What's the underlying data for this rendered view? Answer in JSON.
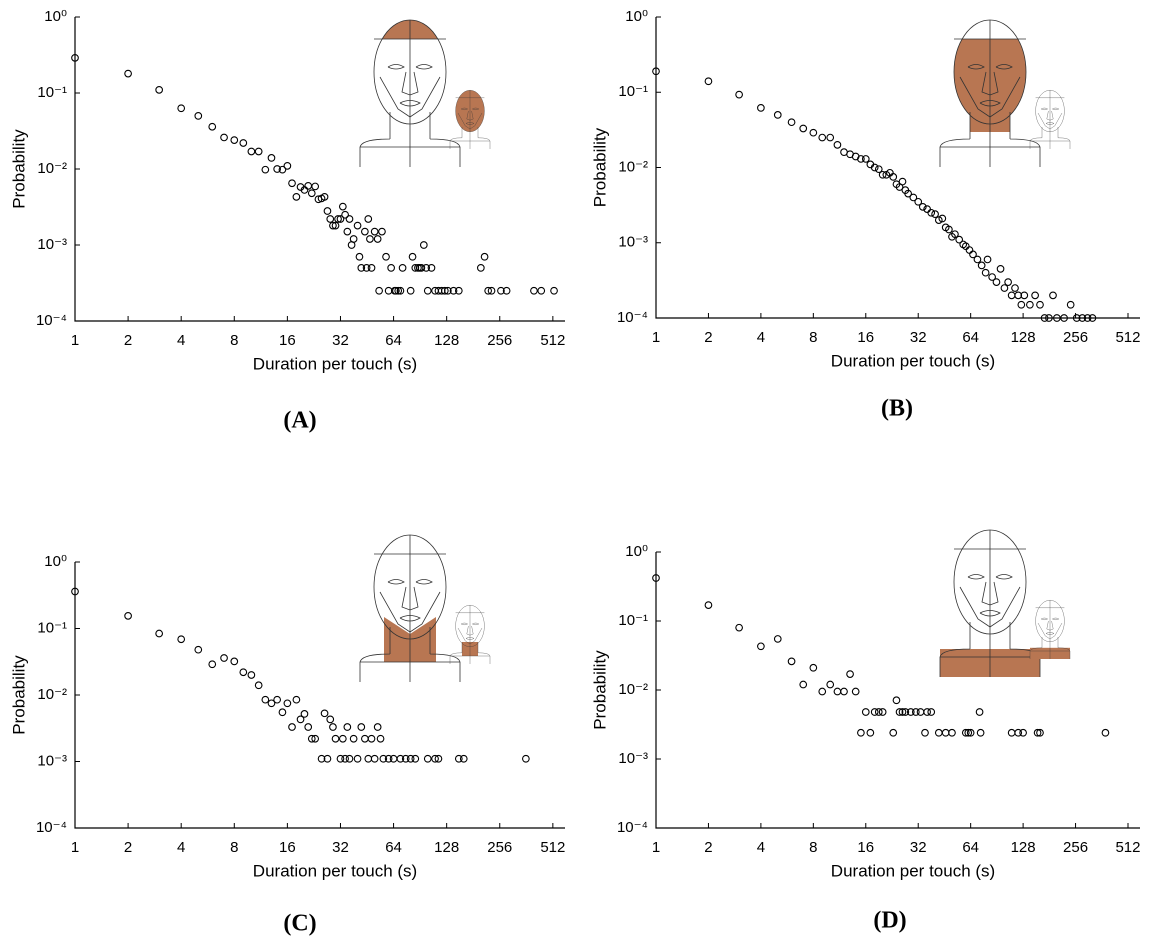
{
  "chart_data": [
    {
      "type": "scatter",
      "panel_label": "(A)",
      "x_label": "Duration per touch (s)",
      "y_label": "Probability",
      "color": "#000000",
      "xscale": "log",
      "yscale": "log",
      "xlim": [
        1,
        600
      ],
      "ylim": [
        0.0001,
        1
      ],
      "xticks": [
        1,
        2,
        4,
        8,
        16,
        32,
        64,
        128,
        256,
        512
      ],
      "yticks": [
        {
          "value": 1,
          "label": "10⁰"
        },
        {
          "value": 0.1,
          "label": "10⁻¹"
        },
        {
          "value": 0.01,
          "label": "10⁻²"
        },
        {
          "value": 0.001,
          "label": "10⁻³"
        },
        {
          "value": 0.0001,
          "label": "10⁻⁴"
        }
      ],
      "x": [
        1,
        2,
        3,
        4,
        5,
        6,
        7,
        8,
        9,
        10,
        11,
        12,
        13,
        14,
        15,
        16,
        17,
        18,
        19,
        20,
        21,
        22,
        23,
        24,
        25,
        26,
        27,
        28,
        29,
        30,
        31,
        32,
        33,
        34,
        35,
        36,
        37,
        38,
        40,
        41,
        42,
        44,
        45,
        46,
        47,
        48,
        50,
        52,
        53,
        55,
        58,
        60,
        62,
        65,
        66,
        68,
        70,
        72,
        80,
        82,
        85,
        88,
        90,
        92,
        95,
        98,
        100,
        105,
        110,
        115,
        120,
        125,
        130,
        140,
        150,
        200,
        210,
        220,
        230,
        260,
        280,
        400,
        440,
        520
      ],
      "values": [
        0.29,
        0.18,
        0.11,
        0.063,
        0.05,
        0.036,
        0.026,
        0.024,
        0.022,
        0.017,
        0.017,
        0.0098,
        0.014,
        0.01,
        0.0098,
        0.011,
        0.0065,
        0.0043,
        0.0058,
        0.0053,
        0.006,
        0.0048,
        0.0059,
        0.004,
        0.0041,
        0.0043,
        0.0028,
        0.0022,
        0.0018,
        0.0018,
        0.0022,
        0.0022,
        0.0032,
        0.0025,
        0.0015,
        0.0022,
        0.001,
        0.0012,
        0.0018,
        0.0007,
        0.0005,
        0.0015,
        0.0005,
        0.0022,
        0.0012,
        0.0005,
        0.0015,
        0.0012,
        0.00025,
        0.0015,
        0.0007,
        0.00025,
        0.0005,
        0.00025,
        0.00025,
        0.00025,
        0.00025,
        0.0005,
        0.00025,
        0.0007,
        0.0005,
        0.0005,
        0.0005,
        0.0005,
        0.001,
        0.0005,
        0.00025,
        0.0005,
        0.00025,
        0.00025,
        0.00025,
        0.00025,
        0.00025,
        0.00025,
        0.00025,
        0.0005,
        0.0007,
        0.00025,
        0.00025,
        0.00025,
        0.00025,
        0.00025,
        0.00025,
        0.00025
      ]
    },
    {
      "type": "scatter",
      "panel_label": "(B)",
      "x_label": "Duration per touch (s)",
      "y_label": "Probability",
      "color": "#000000",
      "xscale": "log",
      "yscale": "log",
      "xlim": [
        1,
        600
      ],
      "ylim": [
        0.0001,
        1
      ],
      "xticks": [
        1,
        2,
        4,
        8,
        16,
        32,
        64,
        128,
        256,
        512
      ],
      "yticks": [
        {
          "value": 1,
          "label": "10⁰"
        },
        {
          "value": 0.1,
          "label": "10⁻¹"
        },
        {
          "value": 0.01,
          "label": "10⁻²"
        },
        {
          "value": 0.001,
          "label": "10⁻³"
        },
        {
          "value": 0.0001,
          "label": "10⁻⁴"
        }
      ],
      "x": [
        1,
        2,
        3,
        4,
        5,
        6,
        7,
        8,
        9,
        10,
        11,
        12,
        13,
        14,
        15,
        16,
        17,
        18,
        19,
        20,
        21,
        22,
        23,
        24,
        25,
        26,
        27,
        28,
        30,
        32,
        34,
        36,
        38,
        40,
        42,
        44,
        46,
        48,
        50,
        52,
        55,
        58,
        60,
        63,
        66,
        70,
        74,
        78,
        80,
        85,
        90,
        95,
        100,
        105,
        110,
        115,
        120,
        125,
        130,
        140,
        150,
        160,
        170,
        180,
        190,
        200,
        220,
        240,
        260,
        280,
        300,
        320
      ],
      "values": [
        0.19,
        0.14,
        0.093,
        0.062,
        0.05,
        0.04,
        0.033,
        0.029,
        0.025,
        0.025,
        0.02,
        0.016,
        0.015,
        0.014,
        0.013,
        0.013,
        0.011,
        0.01,
        0.0095,
        0.008,
        0.008,
        0.0085,
        0.0075,
        0.006,
        0.0055,
        0.0065,
        0.005,
        0.0045,
        0.004,
        0.0035,
        0.003,
        0.0028,
        0.0025,
        0.0024,
        0.002,
        0.0021,
        0.0016,
        0.0015,
        0.0012,
        0.0013,
        0.0011,
        0.00095,
        0.0009,
        0.0008,
        0.0007,
        0.0006,
        0.0005,
        0.0004,
        0.0006,
        0.00035,
        0.0003,
        0.00045,
        0.00025,
        0.0003,
        0.0002,
        0.00025,
        0.0002,
        0.00015,
        0.0002,
        0.00015,
        0.0002,
        0.00015,
        0.0001,
        0.0001,
        0.0002,
        0.0001,
        0.0001,
        0.00015,
        0.0001,
        0.0001,
        0.0001,
        0.0001
      ]
    },
    {
      "type": "scatter",
      "panel_label": "(C)",
      "x_label": "Duration per touch (s)",
      "y_label": "Probability",
      "color": "#000000",
      "xscale": "log",
      "yscale": "log",
      "xlim": [
        1,
        600
      ],
      "ylim": [
        0.0001,
        1
      ],
      "xticks": [
        1,
        2,
        4,
        8,
        16,
        32,
        64,
        128,
        256,
        512
      ],
      "yticks": [
        {
          "value": 1,
          "label": "10⁰"
        },
        {
          "value": 0.1,
          "label": "10⁻¹"
        },
        {
          "value": 0.01,
          "label": "10⁻²"
        },
        {
          "value": 0.001,
          "label": "10⁻³"
        },
        {
          "value": 0.0001,
          "label": "10⁻⁴"
        }
      ],
      "x": [
        1,
        2,
        3,
        4,
        5,
        6,
        7,
        8,
        9,
        10,
        11,
        12,
        13,
        14,
        15,
        16,
        17,
        18,
        19,
        20,
        21,
        22,
        23,
        25,
        26,
        27,
        28,
        29,
        30,
        32,
        33,
        34,
        35,
        36,
        38,
        40,
        42,
        44,
        46,
        48,
        50,
        52,
        54,
        56,
        60,
        64,
        70,
        75,
        80,
        85,
        100,
        110,
        115,
        150,
        160,
        360
      ],
      "values": [
        0.36,
        0.155,
        0.084,
        0.069,
        0.048,
        0.029,
        0.036,
        0.032,
        0.022,
        0.02,
        0.014,
        0.0085,
        0.0075,
        0.0085,
        0.0055,
        0.0075,
        0.0033,
        0.0085,
        0.0043,
        0.0052,
        0.0033,
        0.0022,
        0.0022,
        0.0011,
        0.0053,
        0.0011,
        0.0043,
        0.0033,
        0.0022,
        0.0011,
        0.0022,
        0.0011,
        0.0033,
        0.0011,
        0.0022,
        0.0011,
        0.0033,
        0.0022,
        0.0011,
        0.0022,
        0.0011,
        0.0033,
        0.0022,
        0.0011,
        0.0011,
        0.0011,
        0.0011,
        0.0011,
        0.0011,
        0.0011,
        0.0011,
        0.0011,
        0.0011,
        0.0011,
        0.0011,
        0.0011
      ]
    },
    {
      "type": "scatter",
      "panel_label": "(D)",
      "x_label": "Duration per touch (s)",
      "y_label": "Probability",
      "color": "#000000",
      "xscale": "log",
      "yscale": "log",
      "xlim": [
        1,
        600
      ],
      "ylim": [
        0.0001,
        1
      ],
      "xticks": [
        1,
        2,
        4,
        8,
        16,
        32,
        64,
        128,
        256,
        512
      ],
      "yticks": [
        {
          "value": 1,
          "label": "10⁰"
        },
        {
          "value": 0.1,
          "label": "10⁻¹"
        },
        {
          "value": 0.01,
          "label": "10⁻²"
        },
        {
          "value": 0.001,
          "label": "10⁻³"
        },
        {
          "value": 0.0001,
          "label": "10⁻⁴"
        }
      ],
      "x": [
        1,
        2,
        3,
        4,
        5,
        6,
        7,
        8,
        9,
        10,
        11,
        12,
        13,
        14,
        15,
        16,
        17,
        18,
        19,
        20,
        23,
        24,
        25,
        26,
        27,
        29,
        31,
        33,
        35,
        36,
        38,
        42,
        46,
        50,
        60,
        62,
        64,
        72,
        73,
        110,
        120,
        128,
        155,
        160,
        380
      ],
      "values": [
        0.42,
        0.17,
        0.08,
        0.043,
        0.055,
        0.026,
        0.012,
        0.021,
        0.0095,
        0.012,
        0.0095,
        0.0095,
        0.017,
        0.0095,
        0.0024,
        0.0048,
        0.0024,
        0.0048,
        0.0048,
        0.0048,
        0.0024,
        0.0071,
        0.0048,
        0.0048,
        0.0048,
        0.0048,
        0.0048,
        0.0048,
        0.0024,
        0.0048,
        0.0048,
        0.0024,
        0.0024,
        0.0024,
        0.0024,
        0.0024,
        0.0024,
        0.0048,
        0.0024,
        0.0024,
        0.0024,
        0.0024,
        0.0024,
        0.0024,
        0.0024
      ]
    }
  ]
}
